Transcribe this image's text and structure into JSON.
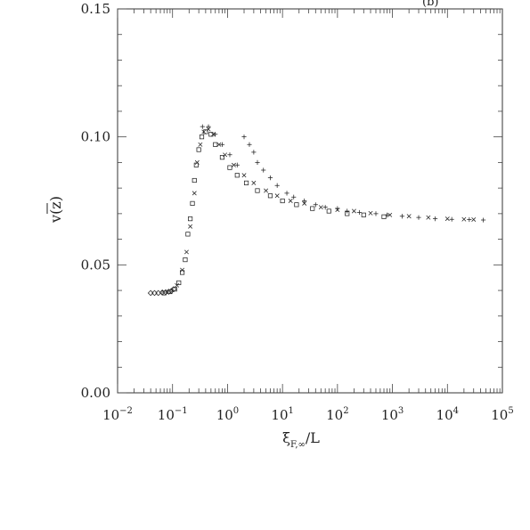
{
  "corner_text": "(b)",
  "chart_data": {
    "type": "scatter",
    "xscale": "log",
    "xlim": [
      0.01,
      100000
    ],
    "ylim": [
      0.0,
      0.15
    ],
    "xticks": [
      {
        "value": 0.01,
        "base": "10",
        "exp": "−2"
      },
      {
        "value": 0.1,
        "base": "10",
        "exp": "−1"
      },
      {
        "value": 1,
        "base": "10",
        "exp": "0"
      },
      {
        "value": 10,
        "base": "10",
        "exp": "1"
      },
      {
        "value": 100,
        "base": "10",
        "exp": "2"
      },
      {
        "value": 1000,
        "base": "10",
        "exp": "3"
      },
      {
        "value": 10000,
        "base": "10",
        "exp": "4"
      },
      {
        "value": 100000,
        "base": "10",
        "exp": "5"
      }
    ],
    "yticks": [
      {
        "value": 0.0,
        "label": "0.00"
      },
      {
        "value": 0.05,
        "label": "0.05"
      },
      {
        "value": 0.1,
        "label": "0.10"
      },
      {
        "value": 0.15,
        "label": "0.15"
      }
    ],
    "xlabel": {
      "main": "ξ",
      "sub": "F,∞",
      "rest": "/L"
    },
    "ylabel": "v(z)",
    "grid": false,
    "series": [
      {
        "marker": "diamond",
        "points": [
          [
            0.04,
            0.039
          ],
          [
            0.047,
            0.039
          ],
          [
            0.055,
            0.039
          ],
          [
            0.065,
            0.0392
          ],
          [
            0.075,
            0.0393
          ],
          [
            0.085,
            0.0395
          ],
          [
            0.095,
            0.0398
          ],
          [
            0.105,
            0.0405
          ]
        ]
      },
      {
        "marker": "square",
        "points": [
          [
            0.07,
            0.039
          ],
          [
            0.09,
            0.0395
          ],
          [
            0.11,
            0.0405
          ],
          [
            0.13,
            0.043
          ],
          [
            0.15,
            0.047
          ],
          [
            0.17,
            0.052
          ],
          [
            0.19,
            0.062
          ],
          [
            0.21,
            0.068
          ],
          [
            0.23,
            0.074
          ],
          [
            0.25,
            0.083
          ],
          [
            0.27,
            0.089
          ],
          [
            0.3,
            0.095
          ],
          [
            0.34,
            0.1
          ],
          [
            0.4,
            0.102
          ],
          [
            0.5,
            0.101
          ],
          [
            0.6,
            0.097
          ],
          [
            0.8,
            0.092
          ],
          [
            1.1,
            0.088
          ],
          [
            1.5,
            0.085
          ],
          [
            2.2,
            0.082
          ],
          [
            3.5,
            0.079
          ],
          [
            6,
            0.077
          ],
          [
            10,
            0.075
          ],
          [
            18,
            0.0735
          ],
          [
            35,
            0.072
          ],
          [
            70,
            0.071
          ],
          [
            150,
            0.07
          ],
          [
            300,
            0.0695
          ],
          [
            700,
            0.0688
          ]
        ]
      },
      {
        "marker": "cross",
        "points": [
          [
            0.12,
            0.042
          ],
          [
            0.15,
            0.048
          ],
          [
            0.18,
            0.055
          ],
          [
            0.21,
            0.065
          ],
          [
            0.25,
            0.078
          ],
          [
            0.28,
            0.09
          ],
          [
            0.32,
            0.097
          ],
          [
            0.37,
            0.102
          ],
          [
            0.45,
            0.103
          ],
          [
            0.55,
            0.101
          ],
          [
            0.7,
            0.097
          ],
          [
            0.9,
            0.093
          ],
          [
            1.3,
            0.089
          ],
          [
            2,
            0.085
          ],
          [
            3,
            0.082
          ],
          [
            5,
            0.079
          ],
          [
            8,
            0.077
          ],
          [
            14,
            0.075
          ],
          [
            25,
            0.074
          ],
          [
            50,
            0.0725
          ],
          [
            100,
            0.0715
          ],
          [
            200,
            0.071
          ],
          [
            400,
            0.0702
          ],
          [
            900,
            0.0695
          ],
          [
            2000,
            0.069
          ],
          [
            4500,
            0.0685
          ],
          [
            10000,
            0.068
          ],
          [
            20000,
            0.0678
          ],
          [
            30000,
            0.0677
          ]
        ]
      },
      {
        "marker": "plus",
        "points": [
          [
            0.35,
            0.104
          ],
          [
            0.45,
            0.104
          ],
          [
            0.6,
            0.101
          ],
          [
            0.8,
            0.097
          ],
          [
            1.1,
            0.093
          ],
          [
            1.5,
            0.089
          ],
          [
            2,
            0.1
          ],
          [
            2.5,
            0.097
          ],
          [
            3,
            0.094
          ],
          [
            3.5,
            0.09
          ],
          [
            4.5,
            0.087
          ],
          [
            6,
            0.084
          ],
          [
            8,
            0.081
          ],
          [
            12,
            0.078
          ],
          [
            16,
            0.0765
          ],
          [
            25,
            0.075
          ],
          [
            40,
            0.0735
          ],
          [
            60,
            0.0725
          ],
          [
            100,
            0.072
          ],
          [
            150,
            0.071
          ],
          [
            250,
            0.0705
          ],
          [
            500,
            0.07
          ],
          [
            800,
            0.0695
          ],
          [
            1500,
            0.069
          ],
          [
            3000,
            0.0685
          ],
          [
            6000,
            0.068
          ],
          [
            12000,
            0.0678
          ],
          [
            25000,
            0.0677
          ],
          [
            45000,
            0.0675
          ]
        ]
      }
    ]
  }
}
